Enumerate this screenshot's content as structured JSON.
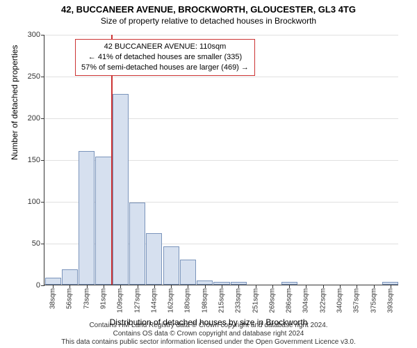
{
  "title": "42, BUCCANEER AVENUE, BROCKWORTH, GLOUCESTER, GL3 4TG",
  "subtitle": "Size of property relative to detached houses in Brockworth",
  "ylabel": "Number of detached properties",
  "xlabel": "Distribution of detached houses by size in Brockworth",
  "footer_line1": "Contains HM Land Registry data © Crown copyright and database right 2024.",
  "footer_line2": "Contains OS data © Crown copyright and database right 2024",
  "footer_line3": "This data contains public sector information licensed under the Open Government Licence v3.0.",
  "chart": {
    "type": "histogram",
    "background_color": "#ffffff",
    "grid_color": "#e0e0e0",
    "axis_color": "#333333",
    "bar_fill": "#d6e0ef",
    "bar_border": "#7a94bb",
    "marker_color": "#cc3333",
    "info_border": "#cc3333",
    "ylim": [
      0,
      300
    ],
    "ytick_step": 50,
    "yticks": [
      0,
      50,
      100,
      150,
      200,
      250,
      300
    ],
    "xtick_labels": [
      "38sqm",
      "56sqm",
      "73sqm",
      "91sqm",
      "109sqm",
      "127sqm",
      "144sqm",
      "162sqm",
      "180sqm",
      "198sqm",
      "215sqm",
      "233sqm",
      "251sqm",
      "269sqm",
      "286sqm",
      "304sqm",
      "322sqm",
      "340sqm",
      "357sqm",
      "375sqm",
      "393sqm"
    ],
    "values": [
      8,
      18,
      160,
      153,
      228,
      98,
      62,
      46,
      30,
      5,
      3,
      3,
      0,
      0,
      3,
      0,
      0,
      0,
      0,
      0,
      3
    ],
    "bar_width_ratio": 0.95,
    "marker_bin_index": 4,
    "label_fontsize": 12,
    "tick_fontsize": 11,
    "xtick_fontsize": 10
  },
  "info_box": {
    "line1": "42 BUCCANEER AVENUE: 110sqm",
    "line2": "← 41% of detached houses are smaller (335)",
    "line3": "57% of semi-detached houses are larger (469) →"
  }
}
